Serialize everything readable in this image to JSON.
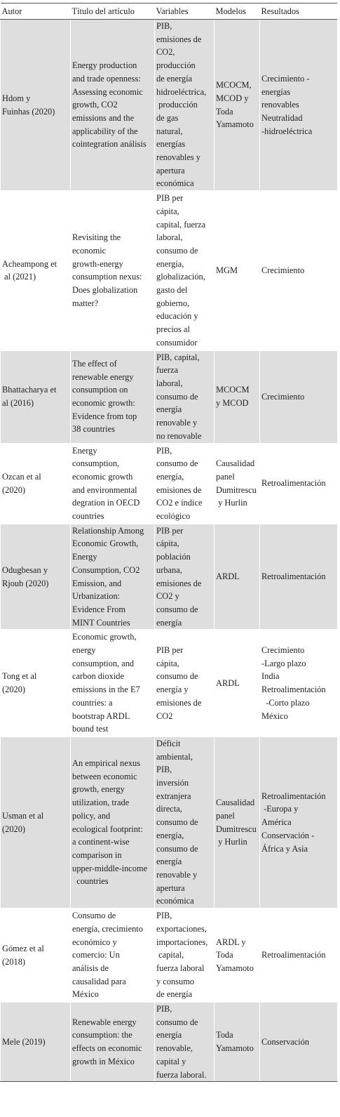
{
  "table": {
    "header": [
      "Autor",
      "Título del artículo",
      "Variables",
      "Modelos",
      "Resultados"
    ],
    "rows": [
      [
        [
          "Hdom y",
          "Fuinhas (2020)"
        ],
        [
          "Energy production",
          "and trade openness:",
          "Assessing economic",
          "growth, CO2",
          "emissions and the",
          "applicability of the",
          "cointegration análisis"
        ],
        [
          "PIB,",
          "emisiones de",
          "CO2,",
          "producción",
          "de energía",
          "hidroeléctrica,",
          " producción",
          "de gas",
          "natural,",
          "energías",
          "renovables y",
          "apertura",
          "económica"
        ],
        [
          "MCOCM,",
          "MCOD y",
          "Toda",
          "Yamamoto"
        ],
        [
          "Crecimiento -",
          "energías",
          "renovables",
          "Neutralidad",
          "-hidroeléctrica"
        ]
      ],
      [
        [
          "Acheampong et",
          " al (2021)"
        ],
        [
          "Revisiting the",
          "economic",
          "growth-energy",
          "consumption nexus:",
          "Does globalization",
          "matter?"
        ],
        [
          "PIB per",
          "cápita,",
          "capital, fuerza",
          "laboral,",
          "consumo de",
          "energía,",
          "globalización,",
          "gasto del",
          "gobierno,",
          "educación y",
          "precios al",
          "consumidor"
        ],
        [
          "MGM"
        ],
        [
          "Crecimiento"
        ]
      ],
      [
        [
          "Bhattacharya et",
          "al (2016)"
        ],
        [
          "The effect of",
          "renewable energy",
          "consumption on",
          "economic growth:",
          "Evidence from top",
          "38 countries"
        ],
        [
          "PIB, capital,",
          "fuerza",
          "laboral,",
          "consumo de",
          "energía",
          "renovable y",
          "no renovable"
        ],
        [
          "MCOCM",
          "y MCOD"
        ],
        [
          "Crecimiento"
        ]
      ],
      [
        [
          "Ozcan et al",
          "(2020)"
        ],
        [
          "Energy",
          "consumption,",
          "economic growth",
          "and environmental",
          "degration in OECD",
          "countries"
        ],
        [
          "PIB,",
          "consumo de",
          "energía,",
          "emisiones de",
          "CO2 e índice",
          "ecológico"
        ],
        [
          "Causalidad",
          "panel",
          "Dumitrescu",
          " y Hurlin"
        ],
        [
          "Retroalimentación"
        ]
      ],
      [
        [
          "Odugbesan y",
          "Rjoub (2020)"
        ],
        [
          "Relationship Among",
          "Economic Growth,",
          "Energy",
          "Consumption, CO2",
          "Emission, and",
          "Urbanization:",
          "Evidence From",
          "MINT Countries"
        ],
        [
          "PIB per",
          "cápita,",
          "población",
          "urbana,",
          "emisiones de",
          "CO2 y",
          "consumo de",
          "energía"
        ],
        [
          "ARDL"
        ],
        [
          "Retroalimentación"
        ]
      ],
      [
        [
          "Tong et al",
          "(2020)"
        ],
        [
          "Economic growth,",
          "energy",
          "consumption, and",
          "carbon dioxide",
          "emissions in the E7",
          "countries: a",
          "bootstrap ARDL",
          "bound test"
        ],
        [
          "PIB per",
          "cápita,",
          "consumo de",
          "energía y",
          "emisiones de",
          "CO2"
        ],
        [
          "ARDL"
        ],
        [
          "Crecimiento",
          "-Largo plazo",
          "India",
          "Retroalimentación",
          "  -Corto plazo",
          "México"
        ]
      ],
      [
        [
          "Usman et al",
          "(2020)"
        ],
        [
          "An empirical nexus",
          "between economic",
          "growth, energy",
          "utilization, trade",
          "policy, and",
          "ecological footprint:",
          "a continent-wise",
          "comparison in",
          "upper-middle-income",
          "  countries"
        ],
        [
          "Déficit",
          "ambiental,",
          "PIB,",
          "inversión",
          "extranjera",
          "directa,",
          "consumo de",
          "energía,",
          "consumo de",
          "energía",
          "renovable y",
          "apertura",
          "económica"
        ],
        [
          "Causalidad",
          "panel",
          "Dumitrescu",
          " y Hurlin"
        ],
        [
          "Retroalimentación",
          " -Europa y",
          "América",
          "Conservación -",
          "África y Asia"
        ]
      ],
      [
        [
          "Gómez et al",
          "(2018)"
        ],
        [
          "Consumo de",
          "energía, crecimiento",
          "económico y",
          "comercio: Un",
          "análisis de",
          "causalidad para",
          "México"
        ],
        [
          "PIB,",
          "exportaciones,",
          "importaciones,",
          " capital,",
          "fuerza laboral",
          "y consumo",
          "de energía"
        ],
        [
          "ARDL y",
          "Toda",
          "Yamamoto"
        ],
        [
          "Retroalimentación"
        ]
      ],
      [
        [
          "Mele (2019)"
        ],
        [
          "Renewable energy",
          "consumption: the",
          "effects on economic",
          "growth in México"
        ],
        [
          "PIB,",
          "consumo de",
          "energía",
          "renovable,",
          "capital y",
          "fuerza laboral."
        ],
        [
          "Toda",
          "Yamamoto"
        ],
        [
          "Conservación"
        ]
      ]
    ]
  }
}
